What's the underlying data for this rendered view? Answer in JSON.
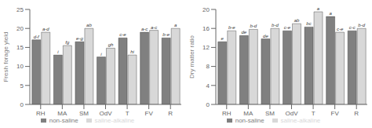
{
  "chart_data": [
    {
      "type": "bar",
      "ylabel": "Fresh forage yield",
      "categories": [
        "RH",
        "MA",
        "SM",
        "OdV",
        "T",
        "FV",
        "R"
      ],
      "ylim": [
        0,
        25
      ],
      "yticks": [
        0,
        5,
        10,
        15,
        20,
        25
      ],
      "legend": "bottom",
      "series": [
        {
          "name": "non-saline",
          "color": "#808080",
          "values": [
            17.0,
            13.0,
            16.5,
            12.5,
            17.5,
            19.0,
            17.5
          ],
          "value_labels": [
            "d-f",
            "i",
            "e-g",
            "i",
            "c-e",
            "a-c",
            "b-e"
          ]
        },
        {
          "name": "saline-alkaline",
          "color": "#d8d8d8",
          "values": [
            19.0,
            15.5,
            20.0,
            14.8,
            13.0,
            19.5,
            20.0
          ],
          "value_labels": [
            "a-d",
            "fg",
            "ab",
            "gh",
            "hi",
            "a-c",
            "a"
          ]
        }
      ]
    },
    {
      "type": "bar",
      "ylabel": "Dry matter ratio",
      "categories": [
        "RH",
        "MA",
        "SM",
        "OdV",
        "T",
        "FV",
        "R"
      ],
      "ylim": [
        0,
        20
      ],
      "yticks": [
        0,
        4,
        8,
        12,
        16,
        20
      ],
      "legend": "bottom",
      "series": [
        {
          "name": "non-saline",
          "color": "#808080",
          "values": [
            13.2,
            14.5,
            13.8,
            15.5,
            16.3,
            18.5,
            15.5
          ],
          "value_labels": [
            "e",
            "de",
            "de",
            "c-e",
            "bc",
            "a",
            "c-c"
          ]
        },
        {
          "name": "saline-alkaline",
          "color": "#d8d8d8",
          "values": [
            15.5,
            15.8,
            16.0,
            17.0,
            19.5,
            15.2,
            16.0
          ],
          "value_labels": [
            "b-e",
            "b-d",
            "b-d",
            "ab",
            "a",
            "c-e",
            "b-d"
          ]
        }
      ]
    }
  ]
}
